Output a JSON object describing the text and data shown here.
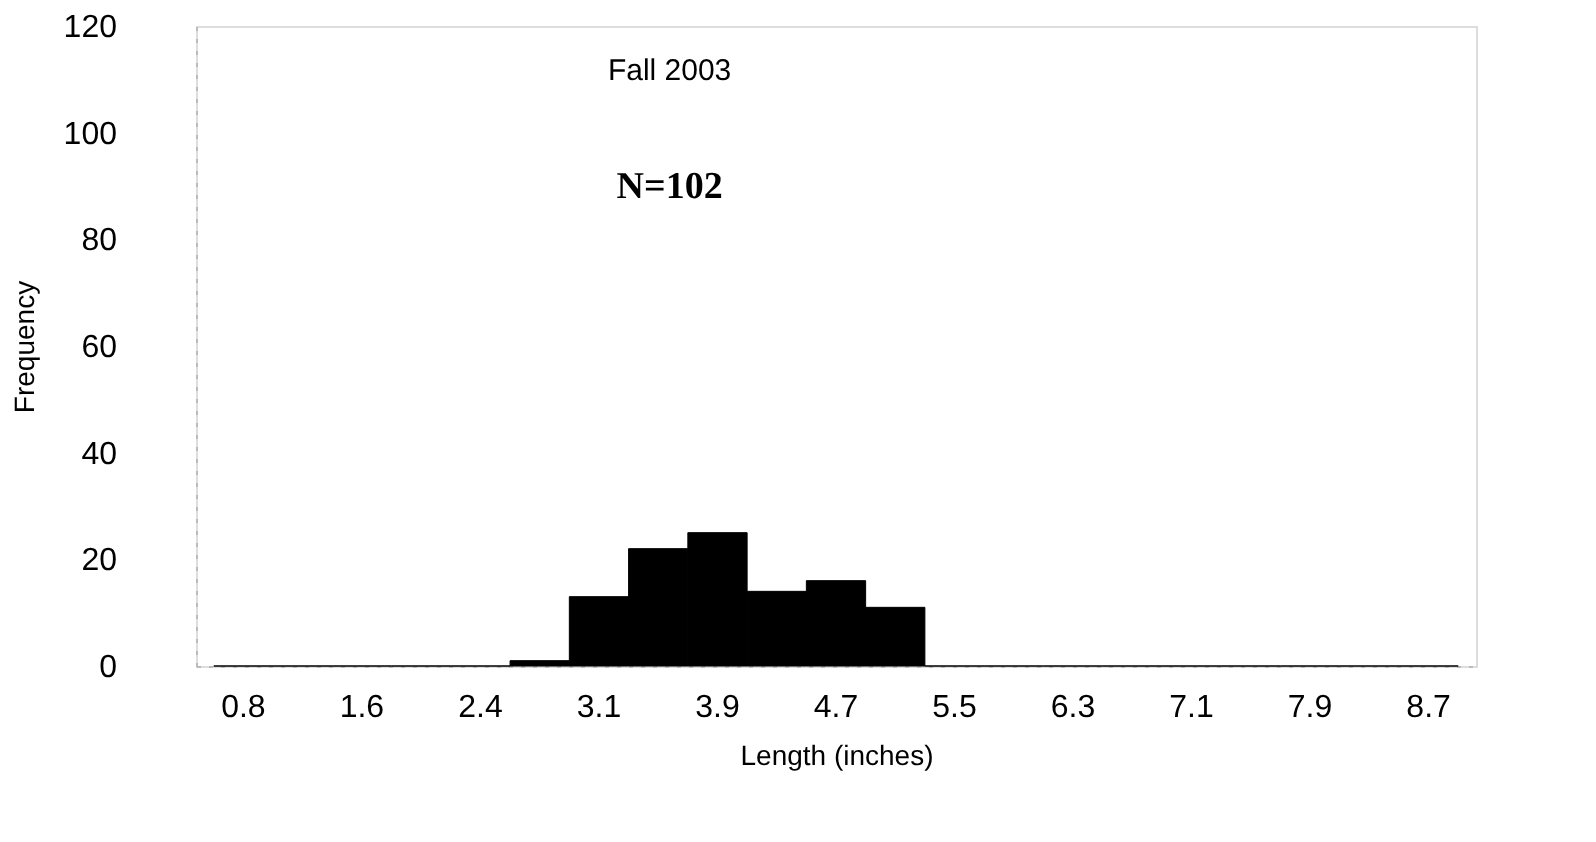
{
  "chart_data": {
    "type": "bar",
    "title": null,
    "annotations": [
      "Fall 2003",
      "N=102"
    ],
    "xlabel": "Length (inches)",
    "ylabel": "Frequency",
    "categories": [
      "0.8",
      null,
      "1.6",
      null,
      "2.4",
      null,
      "3.1",
      null,
      "3.9",
      null,
      "4.7",
      null,
      "5.5",
      null,
      "6.3",
      null,
      "7.1",
      null,
      "7.9",
      null,
      "8.7"
    ],
    "values": [
      0,
      0,
      0,
      0,
      0,
      1,
      13,
      22,
      25,
      14,
      16,
      11,
      0,
      0,
      0,
      0,
      0,
      0,
      0,
      0,
      0
    ],
    "color": "#000000",
    "ylim": [
      0,
      120
    ],
    "yticks": [
      0,
      20,
      40,
      60,
      80,
      100,
      120
    ],
    "grid": false
  }
}
